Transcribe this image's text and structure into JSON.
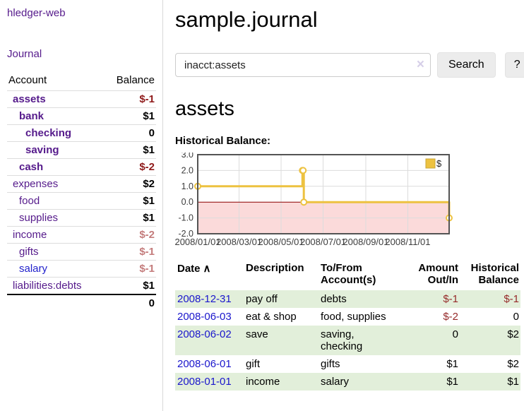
{
  "sidebar": {
    "brand": "hledger-web",
    "journal_link": "Journal",
    "accounts": {
      "header_account": "Account",
      "header_balance": "Balance",
      "rows": [
        {
          "name": "assets",
          "balance": "$-1",
          "depth": 1,
          "bold": true,
          "negative": "strong"
        },
        {
          "name": "bank",
          "balance": "$1",
          "depth": 2,
          "bold": true,
          "negative": "none"
        },
        {
          "name": "checking",
          "balance": "0",
          "depth": 3,
          "bold": true,
          "negative": "none"
        },
        {
          "name": "saving",
          "balance": "$1",
          "depth": 3,
          "bold": true,
          "negative": "none"
        },
        {
          "name": "cash",
          "balance": "$-2",
          "depth": 2,
          "bold": true,
          "negative": "strong"
        },
        {
          "name": "expenses",
          "balance": "$2",
          "depth": 1,
          "bold": false,
          "negative": "none"
        },
        {
          "name": "food",
          "balance": "$1",
          "depth": 2,
          "bold": false,
          "negative": "none"
        },
        {
          "name": "supplies",
          "balance": "$1",
          "depth": 2,
          "bold": false,
          "negative": "none"
        },
        {
          "name": "income",
          "balance": "$-2",
          "depth": 1,
          "bold": false,
          "negative": "soft"
        },
        {
          "name": "gifts",
          "balance": "$-1",
          "depth": 2,
          "bold": false,
          "negative": "soft"
        },
        {
          "name": "salary",
          "balance": "$-1",
          "depth": 2,
          "bold": false,
          "negative": "soft",
          "unvisited": true
        },
        {
          "name": "liabilities:debts",
          "balance": "$1",
          "depth": 1,
          "bold": false,
          "negative": "none"
        }
      ],
      "total": "0"
    }
  },
  "main": {
    "title": "sample.journal",
    "search": {
      "value": "inacct:assets",
      "clear_icon": "×",
      "search_button": "Search",
      "help_button": "?"
    },
    "account_heading": "assets",
    "register": {
      "headers": {
        "date": "Date",
        "sort_icon": "∧",
        "description": "Description",
        "to_from": "To/From Account(s)",
        "amount": "Amount Out/In",
        "balance": "Historical Balance"
      },
      "rows": [
        {
          "date": "2008-12-31",
          "description": "pay off",
          "to_from": "debts",
          "amount": "$-1",
          "amount_negative": true,
          "balance": "$-1",
          "balance_negative": true
        },
        {
          "date": "2008-06-03",
          "description": "eat & shop",
          "to_from": "food, supplies",
          "amount": "$-2",
          "amount_negative": true,
          "balance": "0",
          "balance_negative": false
        },
        {
          "date": "2008-06-02",
          "description": "save",
          "to_from": "saving, checking",
          "amount": "0",
          "amount_negative": false,
          "balance": "$2",
          "balance_negative": false
        },
        {
          "date": "2008-06-01",
          "description": "gift",
          "to_from": "gifts",
          "amount": "$1",
          "amount_negative": false,
          "balance": "$2",
          "balance_negative": false
        },
        {
          "date": "2008-01-01",
          "description": "income",
          "to_from": "salary",
          "amount": "$1",
          "amount_negative": false,
          "balance": "$1",
          "balance_negative": false
        }
      ]
    }
  },
  "chart_data": {
    "type": "line",
    "title": "Historical Balance:",
    "x_range": [
      "2008-01-01",
      "2008-12-31"
    ],
    "ylim": [
      -2,
      3
    ],
    "y_ticks": [
      3,
      2,
      1,
      0,
      -1,
      -2
    ],
    "x_ticks": [
      "2008/01/01",
      "2008/03/01",
      "2008/05/01",
      "2008/07/01",
      "2008/09/01",
      "2008/11/01"
    ],
    "series": [
      {
        "name": "$",
        "color": "#edc240",
        "step": true,
        "points": [
          [
            "2008-01-01",
            1
          ],
          [
            "2008-06-01",
            2
          ],
          [
            "2008-06-02",
            2
          ],
          [
            "2008-06-03",
            0
          ],
          [
            "2008-12-31",
            -1
          ]
        ]
      }
    ],
    "grid": true,
    "legend_position": "top-right",
    "negative_fill": "#fbdada",
    "zero_line_color": "#8b0000",
    "border_color": "#545454"
  }
}
